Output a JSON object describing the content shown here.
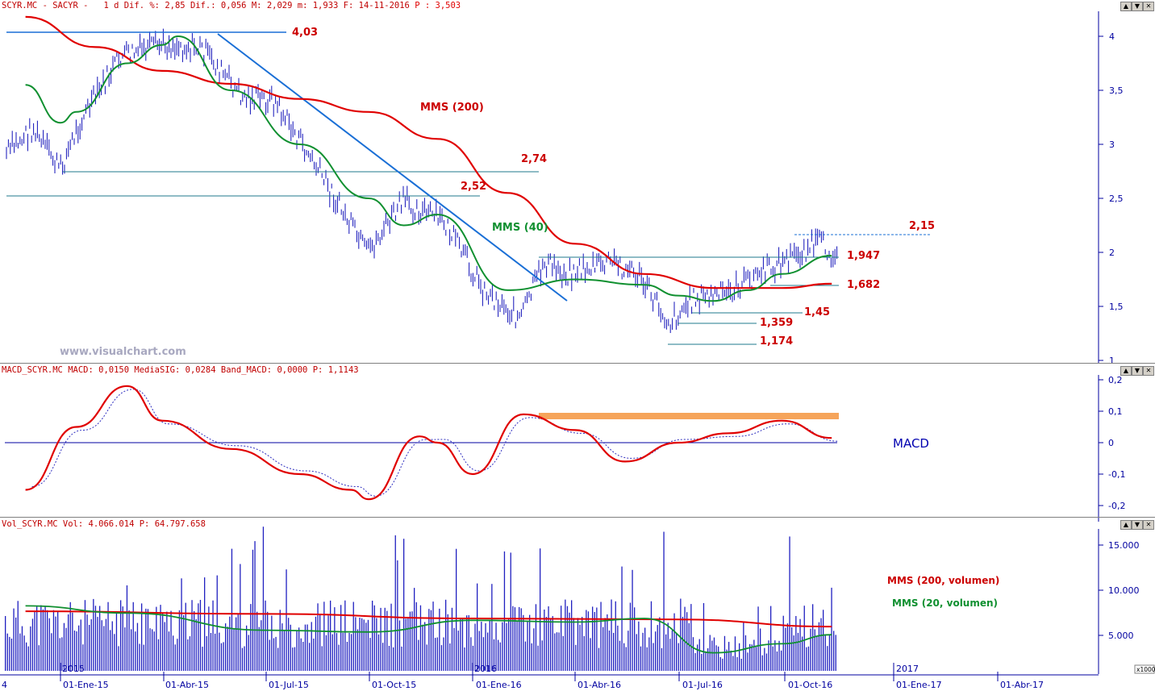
{
  "price_panel": {
    "header": {
      "symbol": "SCYR.MC - SACYR -",
      "interval": "1 d",
      "dif_pct_label": "Dif. %:",
      "dif_pct": "2,85",
      "dif_label": "Dif.:",
      "dif": "0,056",
      "max_label": "M:",
      "max": "2,029",
      "min_label": "m:",
      "min": "1,933",
      "date_label": "F:",
      "date": "14-11-2016",
      "p_label": "P :",
      "p": "3,503"
    },
    "watermark": "www.visualchart.com",
    "y_ticks": [
      "4",
      "3,5",
      "3",
      "2,5",
      "2",
      "1,5",
      "1"
    ],
    "levels": [
      "4,03",
      "2,74",
      "2,52",
      "2,15",
      "1,947",
      "1,682",
      "1,45",
      "1,359",
      "1,174"
    ],
    "indicator_labels": {
      "mms200": "MMS (200)",
      "mms40": "MMS (40)"
    }
  },
  "macd_panel": {
    "header": {
      "name": "MACD_SCYR.MC",
      "macd_label": "MACD:",
      "macd": "0,0150",
      "signal_label": "MediaSIG:",
      "signal": "0,0284",
      "band_label": "Band_MACD:",
      "band": "0,0000",
      "p_label": "P:",
      "p": "1,1143"
    },
    "title": "MACD",
    "y_ticks": [
      "0,2",
      "0,1",
      "0",
      "-0,1",
      "-0,2"
    ]
  },
  "volume_panel": {
    "header": {
      "name": "Vol_SCYR.MC",
      "vol_label": "Vol:",
      "vol": "4.066.014",
      "p_label": "P:",
      "p": "64.797.658"
    },
    "y_ticks": [
      "15.000",
      "10.000",
      "5.000"
    ],
    "unit": "x1000",
    "indicator_labels": {
      "mms200": "MMS (200, volumen)",
      "mms20": "MMS (20, volumen)"
    }
  },
  "x_axis": {
    "left_stub": "4",
    "labels": [
      "01-Ene-15",
      "01-Abr-15",
      "01-Jul-15",
      "01-Oct-15",
      "01-Ene-16",
      "01-Abr-16",
      "01-Jul-16",
      "01-Oct-16",
      "01-Ene-17",
      "01-Abr-17"
    ],
    "years": [
      "2015",
      "2016",
      "2017"
    ]
  },
  "controls": {
    "up": "▲",
    "down": "▼",
    "close": "✕"
  },
  "colors": {
    "price": "#1010b8",
    "mms200": "#e00000",
    "mms40": "#109030",
    "trendline": "#1a6fd6",
    "level_line": "#1f7a8c",
    "macd_band": "#f6a45a",
    "volume_bar": "#2020c0",
    "label_red": "#cc0000",
    "axis": "#0000a0"
  },
  "chart_data": [
    {
      "type": "line",
      "panel": "price",
      "series": [
        {
          "name": "MMS (200)",
          "x": [
            "01-Dic-14",
            "01-Feb-15",
            "01-Abr-15",
            "01-Jun-15",
            "01-Ago-15",
            "01-Oct-15",
            "01-Dic-15",
            "01-Feb-16",
            "01-Abr-16",
            "01-Jun-16",
            "01-Ago-16",
            "01-Oct-16",
            "14-Nov-16"
          ],
          "values": [
            4.18,
            3.9,
            3.68,
            3.56,
            3.42,
            3.3,
            3.05,
            2.55,
            2.08,
            1.8,
            1.67,
            1.67,
            1.71
          ]
        },
        {
          "name": "MMS (40)",
          "x": [
            "01-Dic-14",
            "01-Ene-15",
            "15-Ene-15",
            "01-Mar-15",
            "01-Abr-15",
            "15-Abr-15",
            "01-Jun-15",
            "01-Ago-15",
            "01-Oct-15",
            "01-Nov-15",
            "01-Dic-15",
            "01-Feb-16",
            "01-Abr-16",
            "01-Jun-16",
            "01-Jul-16",
            "01-Ago-16",
            "01-Sep-16",
            "01-Oct-16",
            "14-Nov-16"
          ],
          "values": [
            3.55,
            3.2,
            3.3,
            3.75,
            3.92,
            4.0,
            3.5,
            3.0,
            2.5,
            2.25,
            2.35,
            1.65,
            1.75,
            1.7,
            1.6,
            1.55,
            1.65,
            1.8,
            1.97
          ]
        }
      ],
      "y_range": [
        1,
        4.2
      ],
      "ylabel": ""
    },
    {
      "type": "line",
      "panel": "macd",
      "series": [
        {
          "name": "MACD",
          "x": [
            "01-Dic-14",
            "15-Ene-15",
            "01-Mar-15",
            "01-Abr-15",
            "01-Jun-15",
            "01-Ago-15",
            "15-Sep-15",
            "01-Oct-15",
            "15-Nov-15",
            "01-Dic-15",
            "01-Ene-16",
            "15-Feb-16",
            "01-Abr-16",
            "15-May-16",
            "01-Jul-16",
            "15-Ago-16",
            "01-Oct-16",
            "14-Nov-16"
          ],
          "values": [
            -0.15,
            0.05,
            0.18,
            0.07,
            -0.02,
            -0.1,
            -0.15,
            -0.18,
            0.02,
            0.0,
            -0.1,
            0.09,
            0.04,
            -0.06,
            0.0,
            0.03,
            0.07,
            0.015
          ]
        }
      ],
      "y_range": [
        -0.2,
        0.2
      ],
      "ylabel": ""
    },
    {
      "type": "bar",
      "panel": "volume",
      "series": [
        {
          "name": "MMS (200, volumen)",
          "x": [
            "01-Dic-14",
            "01-Jul-15",
            "01-Ene-16",
            "01-Jul-16",
            "14-Nov-16"
          ],
          "values": [
            6.6,
            6.3,
            5.8,
            5.7,
            4.9
          ]
        },
        {
          "name": "MMS (20, volumen)",
          "x": [
            "01-Dic-14",
            "01-Mar-15",
            "01-Jul-15",
            "01-Oct-15",
            "01-Ene-16",
            "01-Abr-16",
            "01-Jun-16",
            "01-Ago-16",
            "01-Oct-16",
            "14-Nov-16"
          ],
          "values": [
            7.2,
            6.4,
            4.5,
            4.3,
            5.6,
            5.4,
            5.8,
            2.0,
            3.0,
            4.0
          ]
        }
      ],
      "y_range": [
        0,
        17000
      ],
      "ylabel": ""
    }
  ]
}
